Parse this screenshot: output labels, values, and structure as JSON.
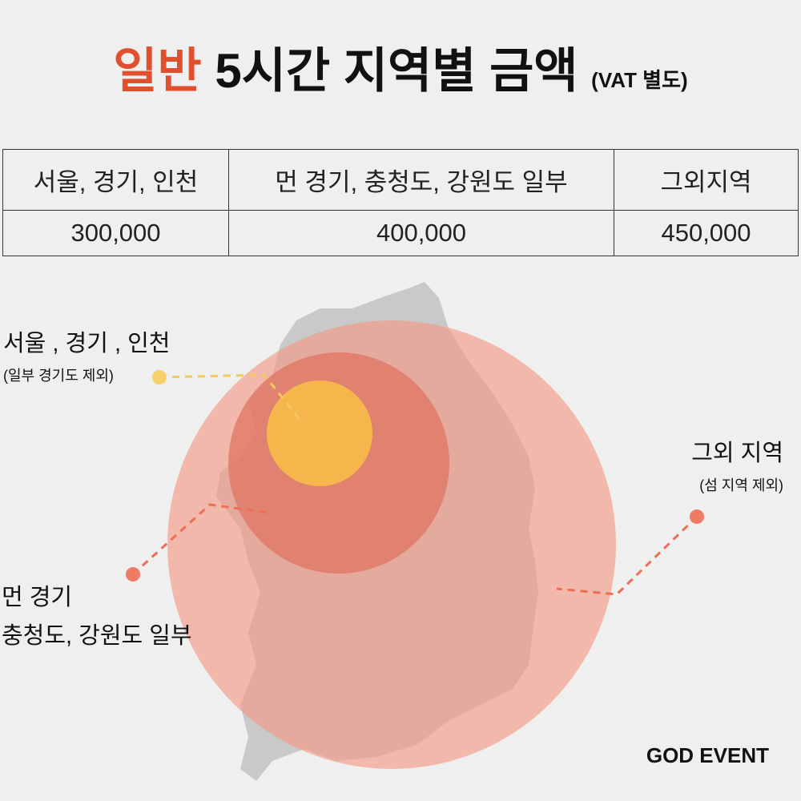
{
  "header": {
    "title_highlight": "일반",
    "title_main": "5시간 지역별 금액",
    "title_note": "(VAT 별도)"
  },
  "table": {
    "header": [
      "서울, 경기, 인천",
      "먼 경기, 충청도, 강원도 일부",
      "그외지역"
    ],
    "rows": [
      [
        "300,000",
        "400,000",
        "450,000"
      ]
    ]
  },
  "map": {
    "labels": [
      {
        "title": "서울 , 경기 , 인천",
        "note": "(일부 경기도 제외)"
      },
      {
        "title": "그외 지역",
        "note": "(섬 지역 제외)"
      },
      {
        "lines": [
          "먼 경기",
          "충청도, 강원도 일부"
        ]
      }
    ]
  },
  "brand": "GOD EVENT"
}
